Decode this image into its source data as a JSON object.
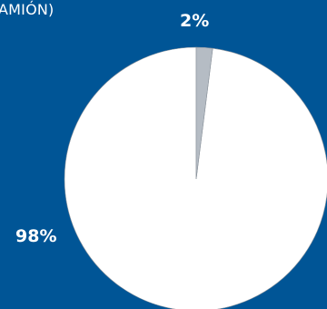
{
  "chart_data": {
    "type": "pie",
    "title": "AMIÓN)",
    "slices": [
      {
        "label": "98%",
        "value": 98,
        "color": "#ffffff"
      },
      {
        "label": "2%",
        "value": 2,
        "color": "#b5bcc4"
      }
    ],
    "start_angle_deg": 0,
    "direction": "counterclockwise"
  },
  "colors": {
    "background": "#005596",
    "slice_border": "#8a929b"
  }
}
